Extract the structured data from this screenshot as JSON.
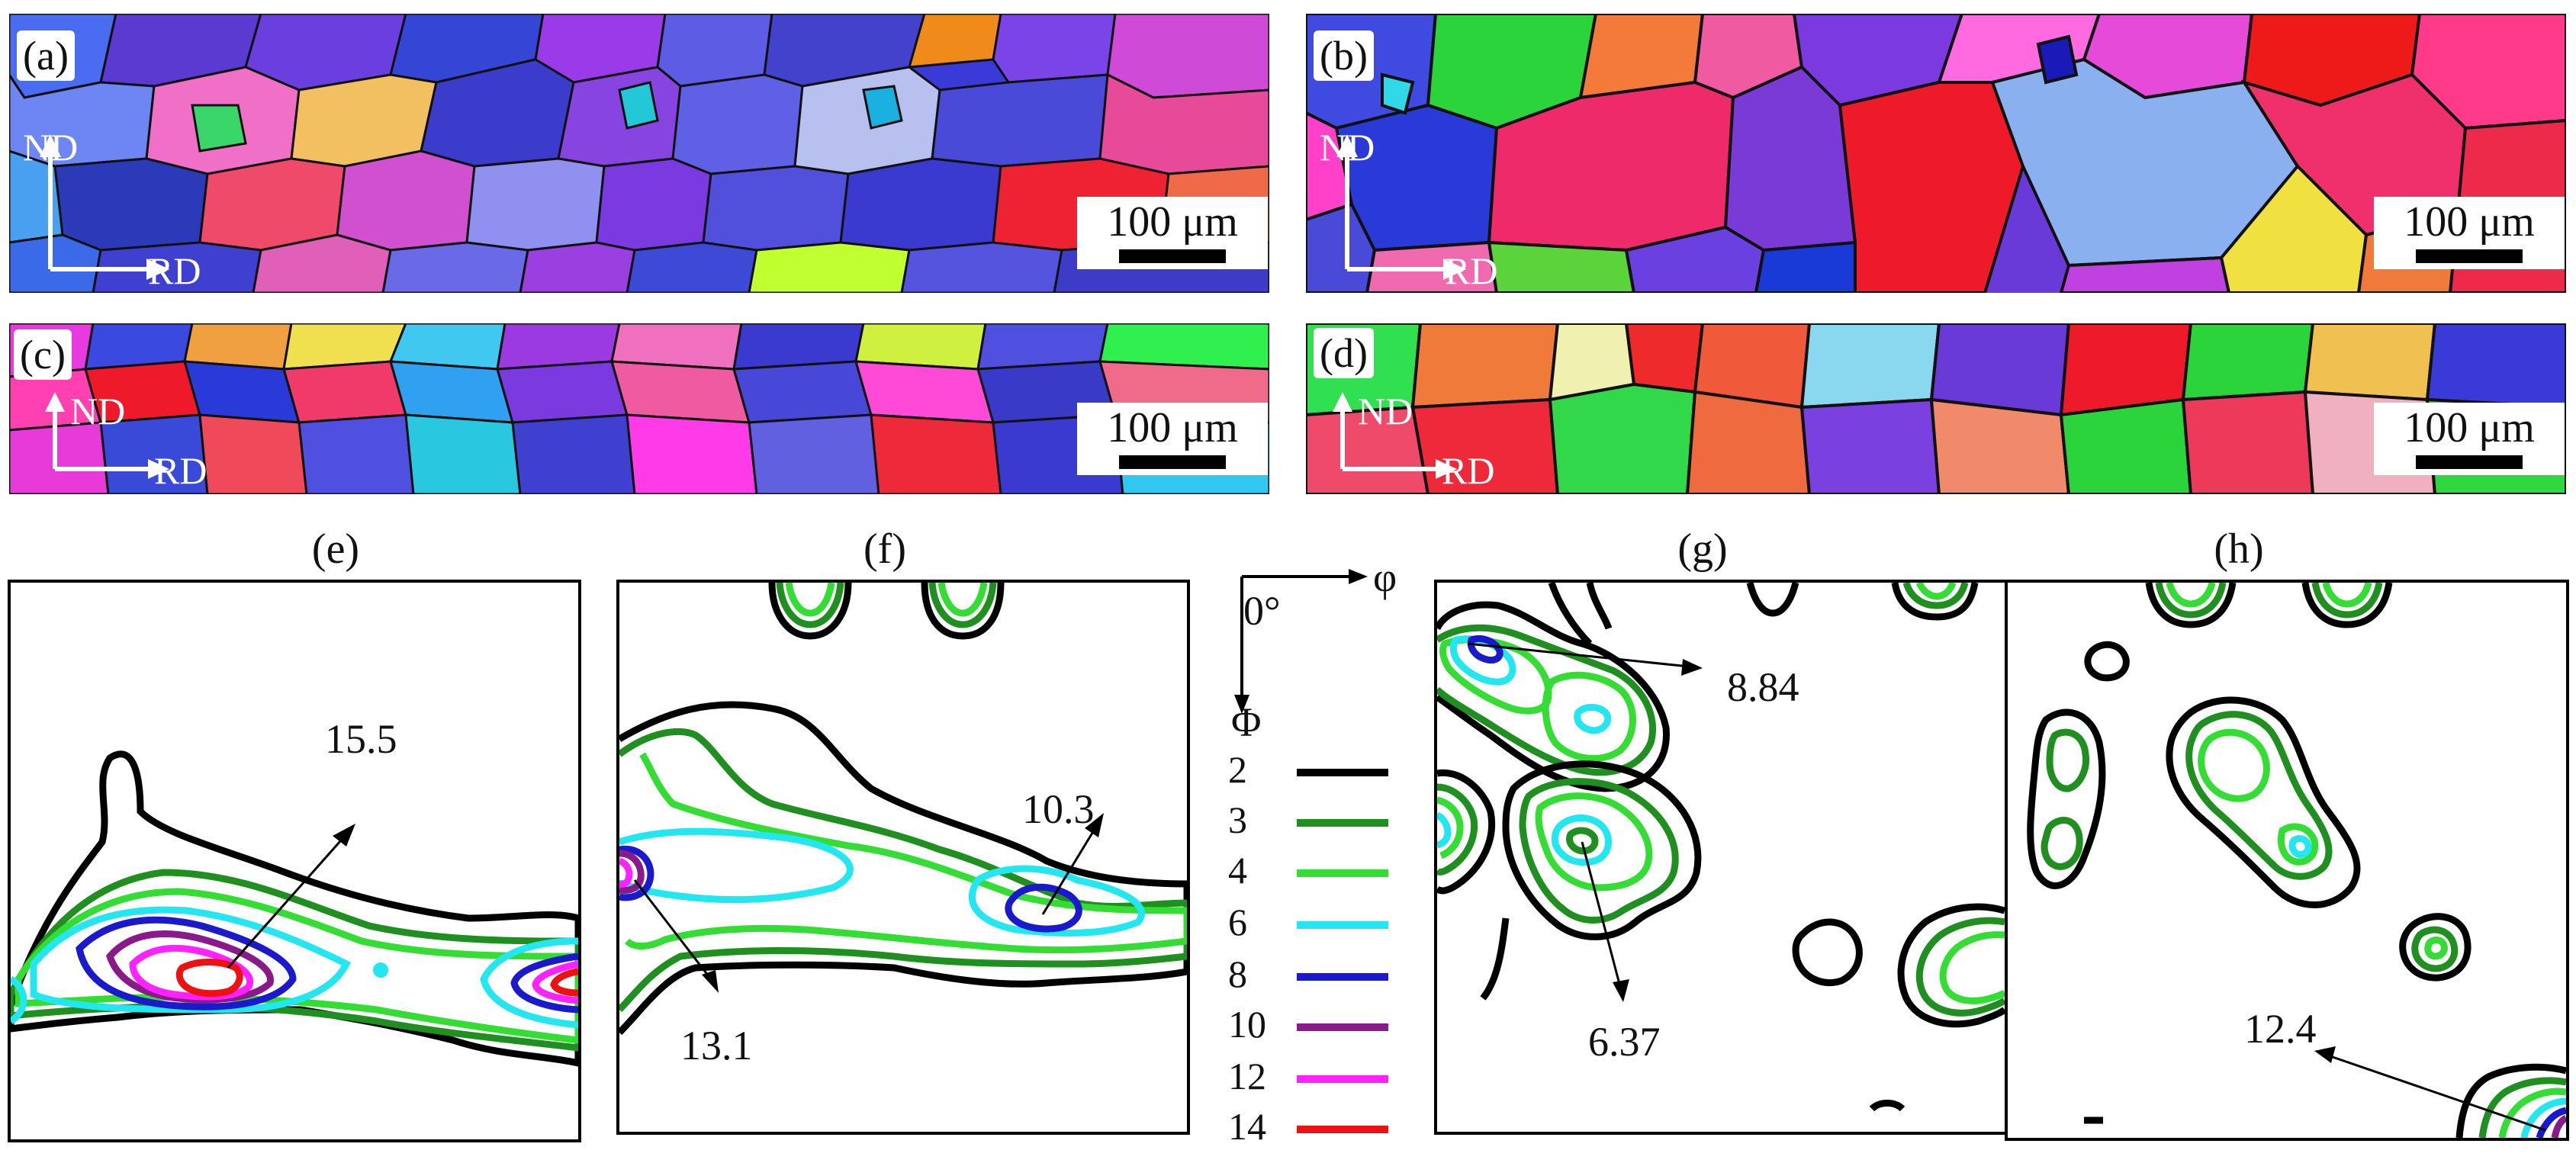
{
  "panels": {
    "a": {
      "label": "(a)",
      "scale": "100 μm",
      "nd": "ND",
      "rd": "RD"
    },
    "b": {
      "label": "(b)",
      "scale": "100 μm",
      "nd": "ND",
      "rd": "RD"
    },
    "c": {
      "label": "(c)",
      "scale": "100 μm",
      "nd": "ND",
      "rd": "RD"
    },
    "d": {
      "label": "(d)",
      "scale": "100 μm",
      "nd": "ND",
      "rd": "RD"
    }
  },
  "odf": {
    "e": {
      "title": "(e)",
      "annotations": [
        "15.5"
      ]
    },
    "f": {
      "title": "(f)",
      "annotations": [
        "10.3",
        "13.1"
      ]
    },
    "g": {
      "title": "(g)",
      "annotations": [
        "8.84",
        "6.37"
      ]
    },
    "h": {
      "title": "(h)",
      "annotations": [
        "12.4"
      ]
    }
  },
  "axis_key": {
    "origin": "0°",
    "phi_horizontal": "φ",
    "phi_vertical": "Φ"
  },
  "legend": {
    "levels": [
      {
        "value": "2",
        "color": "#000000"
      },
      {
        "value": "3",
        "color": "#1f8f1f"
      },
      {
        "value": "4",
        "color": "#33dd33"
      },
      {
        "value": "6",
        "color": "#22e6f0"
      },
      {
        "value": "8",
        "color": "#1a1acc"
      },
      {
        "value": "10",
        "color": "#8a1a8a"
      },
      {
        "value": "12",
        "color": "#ff22ff"
      },
      {
        "value": "14",
        "color": "#ee1111"
      }
    ]
  }
}
